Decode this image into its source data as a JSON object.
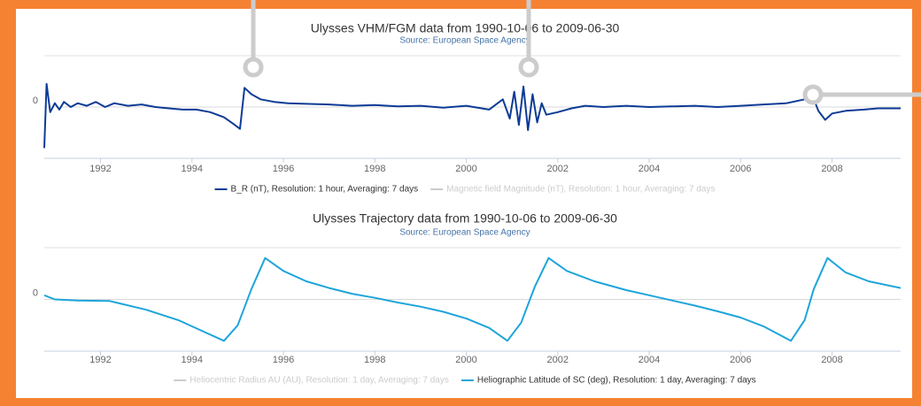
{
  "chart_data": [
    {
      "type": "line",
      "title": "Ulysses VHM/FGM data from 1990-10-06 to 2009-06-30",
      "subtitle": "Source: European Space Agency",
      "xlim": [
        1990.77,
        2009.5
      ],
      "xticks": [
        1992,
        1994,
        1996,
        1998,
        2000,
        2002,
        2004,
        2006,
        2008
      ],
      "ylim": [
        -4,
        4
      ],
      "yticks": [
        0
      ],
      "grid": true,
      "x": [
        1990.77,
        1990.82,
        1990.9,
        1991.0,
        1991.1,
        1991.2,
        1991.35,
        1991.5,
        1991.7,
        1991.9,
        1992.1,
        1992.3,
        1992.6,
        1992.9,
        1993.2,
        1993.5,
        1993.8,
        1994.1,
        1994.4,
        1994.7,
        1994.9,
        1995.05,
        1995.15,
        1995.3,
        1995.5,
        1995.8,
        1996.1,
        1996.5,
        1997.0,
        1997.5,
        1998.0,
        1998.5,
        1999.0,
        1999.5,
        2000.0,
        2000.5,
        2000.8,
        2000.95,
        2001.05,
        2001.15,
        2001.25,
        2001.35,
        2001.45,
        2001.55,
        2001.65,
        2001.75,
        2002.0,
        2002.3,
        2002.6,
        2003.0,
        2003.5,
        2004.0,
        2004.5,
        2005.0,
        2005.5,
        2006.0,
        2006.5,
        2007.0,
        2007.4,
        2007.55,
        2007.7,
        2007.85,
        2008.0,
        2008.3,
        2008.7,
        2009.0,
        2009.5
      ],
      "series": [
        {
          "name": "B_R (nT), Resolution: 1 hour, Averaging: 7 days",
          "color": "#0d3b96",
          "visible": true,
          "values": [
            -3.2,
            1.8,
            -0.4,
            0.3,
            -0.2,
            0.4,
            0,
            0.3,
            0.1,
            0.4,
            0,
            0.3,
            0.1,
            0.2,
            0,
            -0.1,
            -0.2,
            -0.2,
            -0.4,
            -0.8,
            -1.3,
            -1.7,
            1.5,
            1.0,
            0.6,
            0.4,
            0.3,
            0.25,
            0.2,
            0.1,
            0.15,
            0.05,
            0.1,
            -0.05,
            0.1,
            -0.2,
            0.6,
            -0.9,
            1.2,
            -1.4,
            1.6,
            -1.8,
            1.0,
            -1.2,
            0.3,
            -0.6,
            -0.4,
            -0.1,
            0.1,
            0,
            0.1,
            0,
            0.05,
            0.1,
            0,
            0.1,
            0.2,
            0.3,
            0.6,
            1.1,
            -0.3,
            -1.0,
            -0.5,
            -0.3,
            -0.2,
            -0.1,
            -0.1
          ]
        },
        {
          "name": "Magnetic field Magnitude (nT), Resolution: 1 hour, Averaging: 7 days",
          "color": "#cccccc",
          "visible": false
        }
      ]
    },
    {
      "type": "line",
      "title": "Ulysses Trajectory data from 1990-10-06 to 2009-06-30",
      "subtitle": "Source: European Space Agency",
      "xlim": [
        1990.77,
        2009.5
      ],
      "xticks": [
        1992,
        1994,
        1996,
        1998,
        2000,
        2002,
        2004,
        2006,
        2008
      ],
      "ylim": [
        -100,
        100
      ],
      "yticks": [
        0
      ],
      "grid": true,
      "x": [
        1990.77,
        1991.0,
        1991.5,
        1992.2,
        1993.0,
        1993.7,
        1994.2,
        1994.7,
        1995.0,
        1995.3,
        1995.6,
        1996.0,
        1996.5,
        1997.0,
        1997.5,
        1998.0,
        1998.5,
        1999.0,
        1999.5,
        2000.0,
        2000.5,
        2000.9,
        2001.2,
        2001.5,
        2001.8,
        2002.2,
        2002.8,
        2003.5,
        2004.0,
        2004.5,
        2005.0,
        2005.5,
        2006.0,
        2006.5,
        2007.1,
        2007.4,
        2007.6,
        2007.9,
        2008.3,
        2008.8,
        2009.5
      ],
      "series": [
        {
          "name": "Heliocentric Radius AU (AU), Resolution: 1 day, Averaging: 7 days",
          "color": "#cccccc",
          "visible": false
        },
        {
          "name": "Heliographic Latitude of SC (deg), Resolution: 1 day, Averaging: 7 days",
          "color": "#1ea5db",
          "visible": true,
          "values": [
            8,
            0,
            -2,
            -3,
            -20,
            -40,
            -60,
            -80,
            -50,
            20,
            80,
            55,
            35,
            22,
            11,
            3,
            -6,
            -14,
            -24,
            -37,
            -55,
            -80,
            -45,
            25,
            80,
            55,
            35,
            18,
            8,
            -2,
            -12,
            -23,
            -35,
            -52,
            -80,
            -40,
            20,
            80,
            52,
            35,
            22
          ]
        }
      ]
    }
  ]
}
